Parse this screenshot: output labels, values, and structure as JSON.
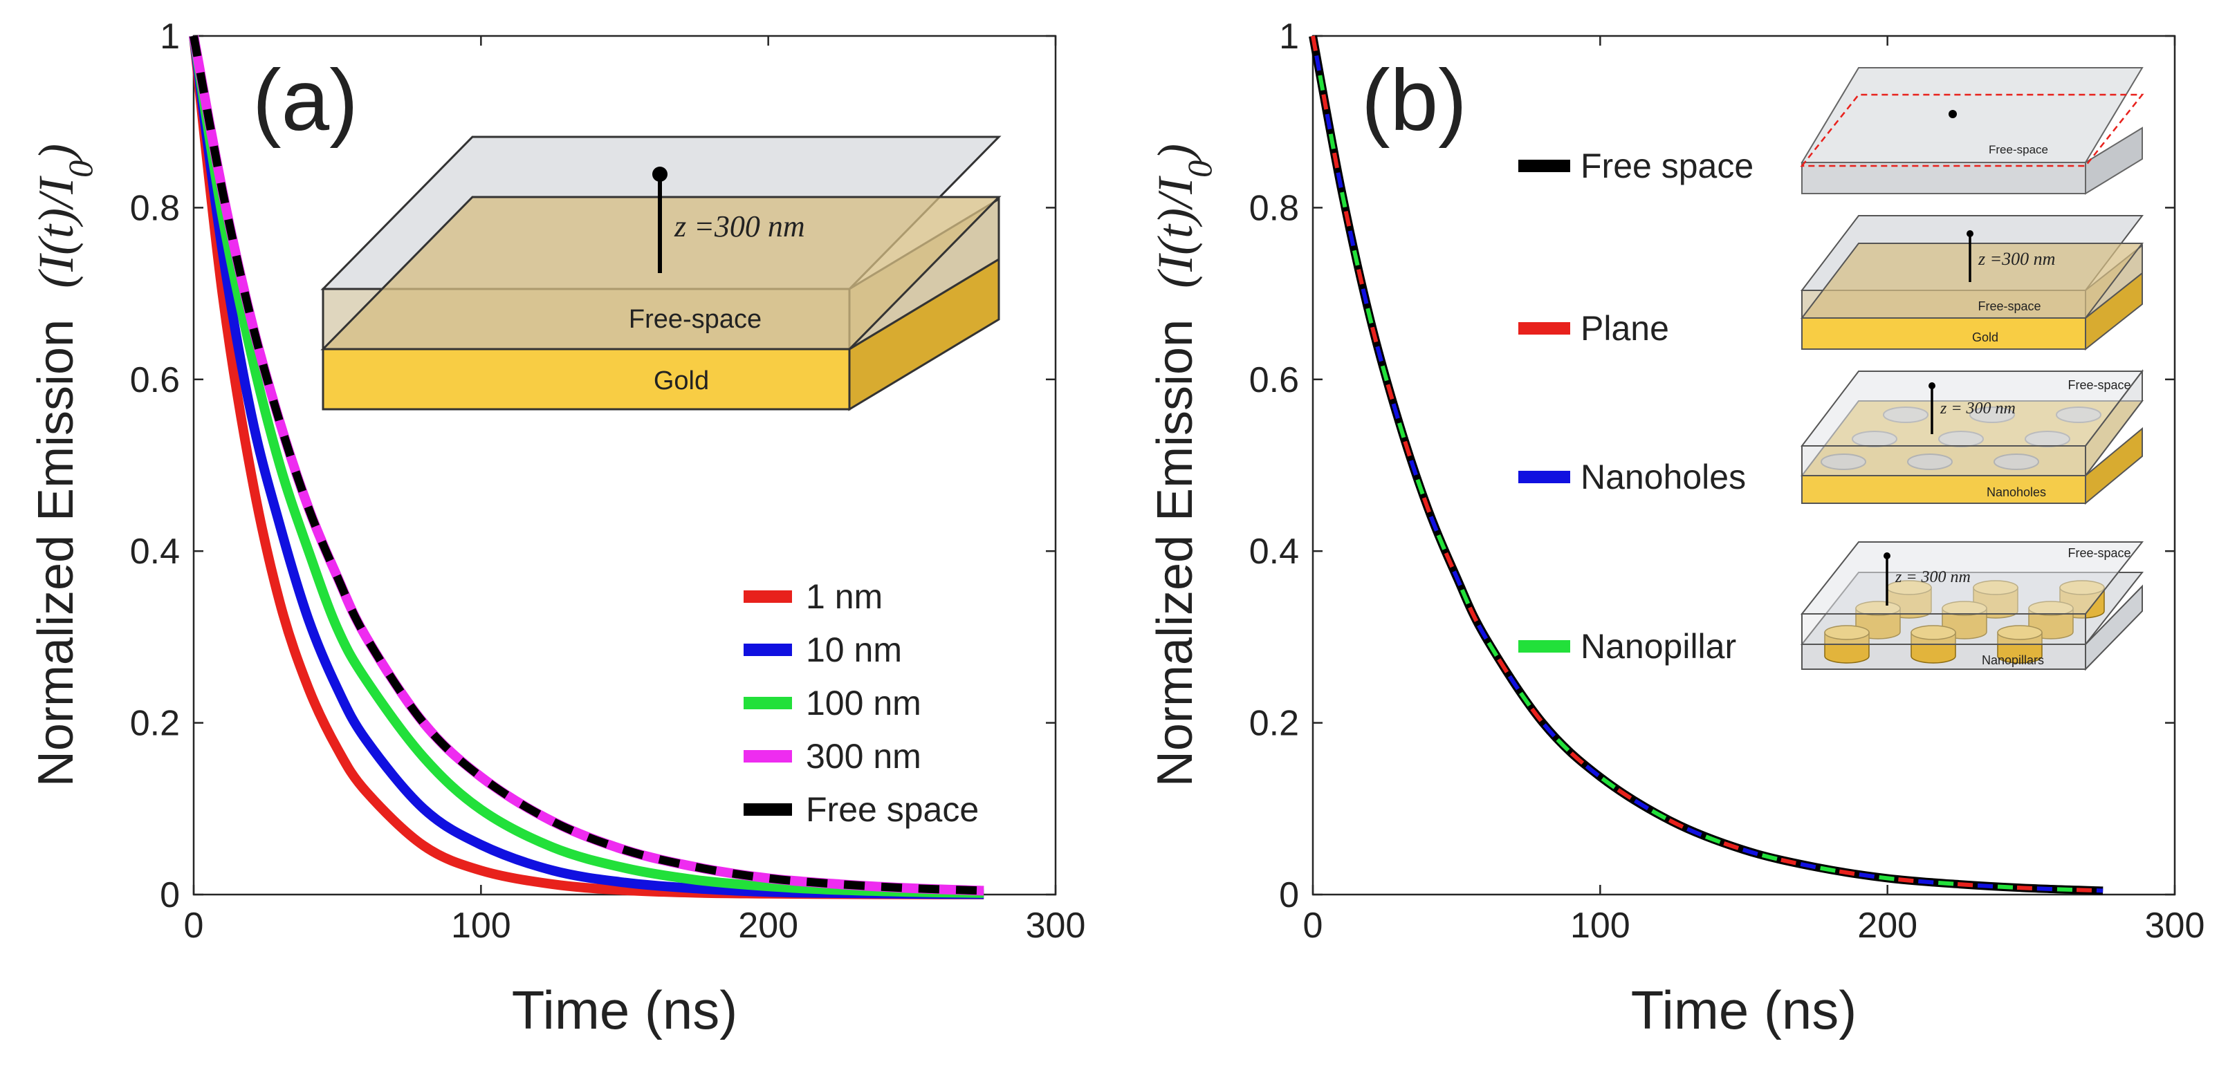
{
  "chart_data": [
    {
      "panel": "(a)",
      "type": "line",
      "xlabel": "Time (ns)",
      "ylabel": "Normalized Emission",
      "ylabel_formula": "(I(t)/I0)",
      "xlim": [
        0,
        300
      ],
      "ylim": [
        0,
        1
      ],
      "xticks": [
        0,
        100,
        200,
        300
      ],
      "yticks": [
        0,
        0.2,
        0.4,
        0.6,
        0.8,
        1
      ],
      "ytick_labels": [
        "0",
        "0.2",
        "0.4",
        "0.6",
        "0.8",
        "1"
      ],
      "x": [
        0,
        10,
        20,
        30,
        40,
        50,
        60,
        80,
        100,
        125,
        150,
        175,
        200,
        225,
        250,
        275
      ],
      "series": [
        {
          "name": "1 nm",
          "color": "#e8211c",
          "dash": false,
          "values": [
            1.0,
            0.7,
            0.49,
            0.34,
            0.24,
            0.17,
            0.12,
            0.057,
            0.028,
            0.012,
            0.005,
            0.002,
            0.001,
            0.0005,
            0.0002,
            0.0001
          ]
        },
        {
          "name": "10 nm",
          "color": "#1010e0",
          "dash": false,
          "values": [
            1.0,
            0.75,
            0.56,
            0.43,
            0.32,
            0.24,
            0.18,
            0.1,
            0.058,
            0.028,
            0.014,
            0.007,
            0.003,
            0.0016,
            0.0008,
            0.0004
          ]
        },
        {
          "name": "100 nm",
          "color": "#22e03a",
          "dash": false,
          "values": [
            1.0,
            0.79,
            0.63,
            0.5,
            0.4,
            0.31,
            0.25,
            0.16,
            0.099,
            0.055,
            0.031,
            0.017,
            0.0095,
            0.0053,
            0.003,
            0.0017
          ]
        },
        {
          "name": "300 nm",
          "color": "#ee2cf0",
          "dash": false,
          "values": [
            1.0,
            0.82,
            0.67,
            0.55,
            0.45,
            0.37,
            0.3,
            0.2,
            0.137,
            0.085,
            0.052,
            0.032,
            0.019,
            0.012,
            0.0073,
            0.0045
          ]
        },
        {
          "name": "Free space",
          "color": "#000000",
          "dash": true,
          "values": [
            1.0,
            0.82,
            0.67,
            0.55,
            0.45,
            0.37,
            0.3,
            0.2,
            0.137,
            0.085,
            0.052,
            0.032,
            0.019,
            0.012,
            0.0073,
            0.0045
          ]
        }
      ],
      "legend_position": "bottom-right",
      "inset": {
        "label_z": "z =300 nm",
        "layer_top": "Free-space",
        "layer_bottom": "Gold"
      }
    },
    {
      "panel": "(b)",
      "type": "line",
      "xlabel": "Time (ns)",
      "ylabel": "Normalized Emission",
      "ylabel_formula": "(I(t)/I0)",
      "xlim": [
        0,
        300
      ],
      "ylim": [
        0,
        1
      ],
      "xticks": [
        0,
        100,
        200,
        300
      ],
      "yticks": [
        0,
        0.2,
        0.4,
        0.6,
        0.8,
        1
      ],
      "ytick_labels": [
        "0",
        "0.2",
        "0.4",
        "0.6",
        "0.8",
        "1"
      ],
      "x": [
        0,
        10,
        20,
        30,
        40,
        50,
        60,
        80,
        100,
        125,
        150,
        175,
        200,
        225,
        250,
        275
      ],
      "series": [
        {
          "name": "Free space",
          "color": "#000000",
          "dash": false,
          "values": [
            1.0,
            0.82,
            0.67,
            0.55,
            0.45,
            0.37,
            0.3,
            0.2,
            0.137,
            0.085,
            0.052,
            0.032,
            0.019,
            0.012,
            0.0073,
            0.0045
          ]
        },
        {
          "name": "Plane",
          "color": "#e8211c",
          "dash": true,
          "values": [
            1.0,
            0.82,
            0.67,
            0.55,
            0.45,
            0.37,
            0.3,
            0.2,
            0.137,
            0.085,
            0.052,
            0.032,
            0.019,
            0.012,
            0.0073,
            0.0045
          ]
        },
        {
          "name": "Nanoholes",
          "color": "#1010e0",
          "dash": true,
          "values": [
            1.0,
            0.82,
            0.67,
            0.55,
            0.45,
            0.37,
            0.3,
            0.2,
            0.137,
            0.085,
            0.052,
            0.032,
            0.019,
            0.012,
            0.0073,
            0.0045
          ]
        },
        {
          "name": "Nanopillar",
          "color": "#22e03a",
          "dash": true,
          "values": [
            1.0,
            0.82,
            0.67,
            0.55,
            0.45,
            0.37,
            0.3,
            0.2,
            0.137,
            0.085,
            0.052,
            0.032,
            0.019,
            0.012,
            0.0073,
            0.0045
          ]
        }
      ],
      "legend_position": "right",
      "insets": [
        {
          "top_label": "Free-space"
        },
        {
          "label_z": "z =300 nm",
          "top_label": "Free-space",
          "bottom_label": "Gold"
        },
        {
          "label_z": "z = 300 nm",
          "top_label": "Free-space",
          "bottom_label": "Nanoholes"
        },
        {
          "label_z": "z = 300 nm",
          "top_label": "Free-space",
          "bottom_label": "Nanopillars"
        }
      ]
    }
  ]
}
